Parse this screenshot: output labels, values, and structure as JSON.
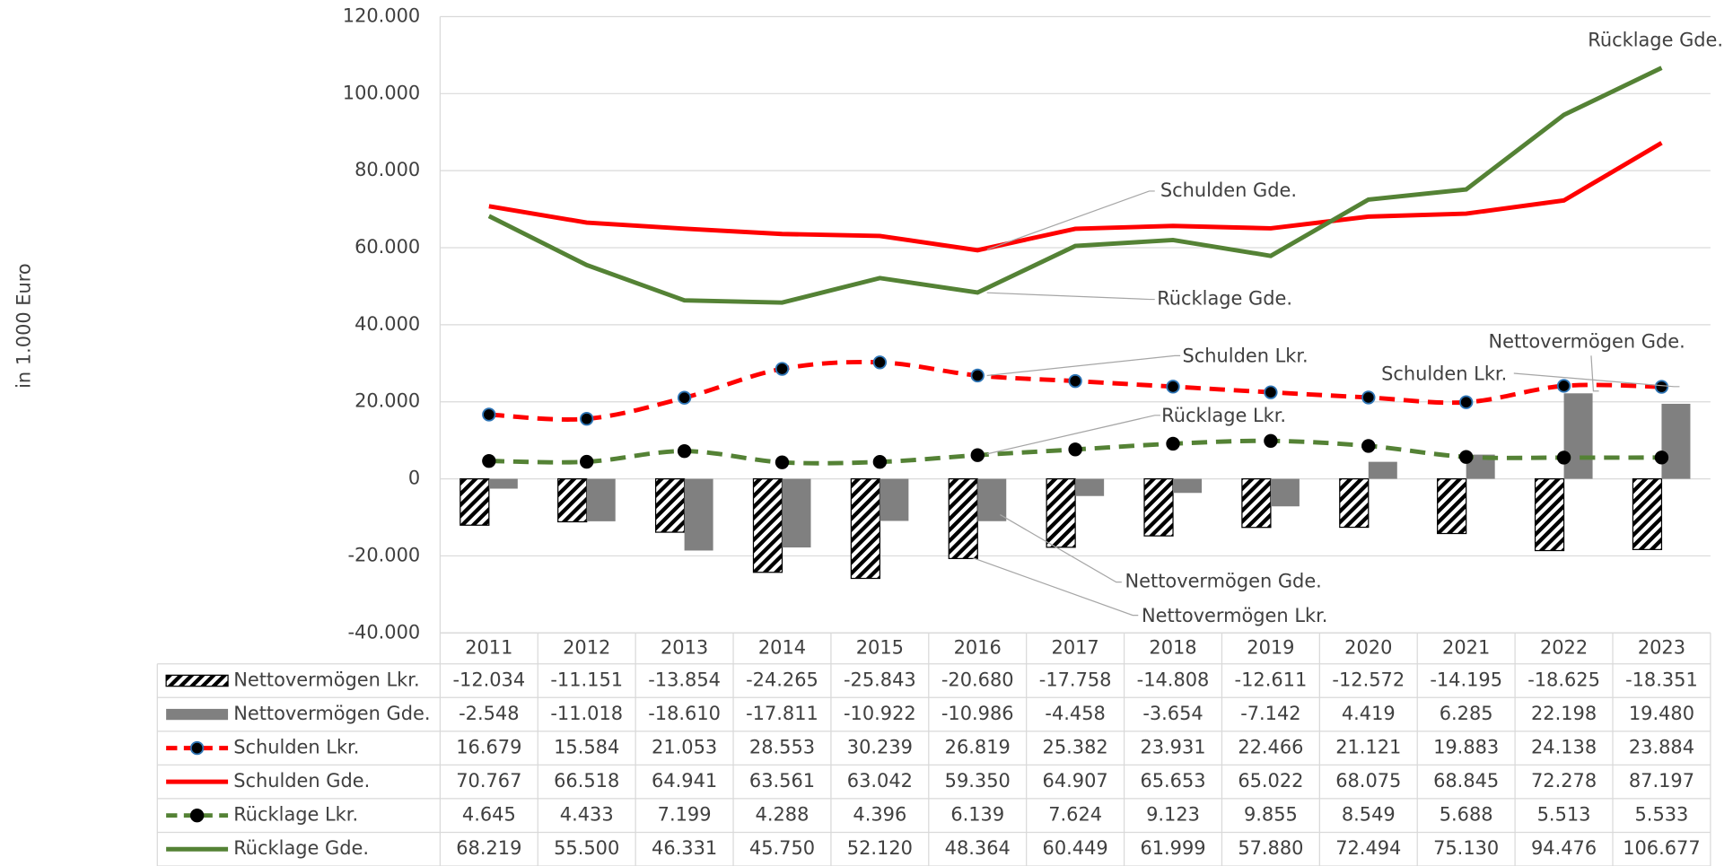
{
  "chart_data": {
    "type": "combo",
    "y_label": "in 1.000 Euro",
    "categories": [
      "2011",
      "2012",
      "2013",
      "2014",
      "2015",
      "2016",
      "2017",
      "2018",
      "2019",
      "2020",
      "2021",
      "2022",
      "2023"
    ],
    "ylim": [
      -40000,
      120000
    ],
    "yticks": [
      {
        "value": -40000,
        "label": "-40.000"
      },
      {
        "value": -20000,
        "label": "-20.000"
      },
      0,
      {
        "value": 20000,
        "label": "20.000"
      },
      {
        "value": 40000,
        "label": "40.000"
      },
      {
        "value": 60000,
        "label": "60.000"
      },
      {
        "value": 80000,
        "label": "80.000"
      },
      {
        "value": 100000,
        "label": "100.000"
      },
      {
        "value": 120000,
        "label": "120.000"
      }
    ],
    "grid": true,
    "data_table": true,
    "series": [
      {
        "name": "Nettovermögen Lkr.",
        "kind": "bar",
        "pattern": "hatch",
        "color": "#000000",
        "values": [
          -12034,
          -11151,
          -13854,
          -24265,
          -25843,
          -20680,
          -17758,
          -14808,
          -12611,
          -12572,
          -14195,
          -18625,
          -18351
        ],
        "value_labels": [
          "-12.034",
          "-11.151",
          "-13.854",
          "-24.265",
          "-25.843",
          "-20.680",
          "-17.758",
          "-14.808",
          "-12.611",
          "-12.572",
          "-14.195",
          "-18.625",
          "-18.351"
        ]
      },
      {
        "name": "Nettovermögen Gde.",
        "kind": "bar",
        "color": "#808080",
        "values": [
          -2548,
          -11018,
          -18610,
          -17811,
          -10922,
          -10986,
          -4458,
          -3654,
          -7142,
          4419,
          6285,
          22198,
          19480
        ],
        "value_labels": [
          "-2.548",
          "-11.018",
          "-18.610",
          "-17.811",
          "-10.922",
          "-10.986",
          "-4.458",
          "-3.654",
          "-7.142",
          "4.419",
          "6.285",
          "22.198",
          "19.480"
        ]
      },
      {
        "name": "Schulden Lkr.",
        "kind": "line",
        "dashed": true,
        "smooth": true,
        "markers": true,
        "color": "#ff0000",
        "marker_color": "#000000",
        "marker_edge": "#2e75b6",
        "values": [
          16679,
          15584,
          21053,
          28553,
          30239,
          26819,
          25382,
          23931,
          22466,
          21121,
          19883,
          24138,
          23884
        ],
        "value_labels": [
          "16.679",
          "15.584",
          "21.053",
          "28.553",
          "30.239",
          "26.819",
          "25.382",
          "23.931",
          "22.466",
          "21.121",
          "19.883",
          "24.138",
          "23.884"
        ]
      },
      {
        "name": "Schulden Gde.",
        "kind": "line",
        "color": "#ff0000",
        "values": [
          70767,
          66518,
          64941,
          63561,
          63042,
          59350,
          64907,
          65653,
          65022,
          68075,
          68845,
          72278,
          87197
        ],
        "value_labels": [
          "70.767",
          "66.518",
          "64.941",
          "63.561",
          "63.042",
          "59.350",
          "64.907",
          "65.653",
          "65.022",
          "68.075",
          "68.845",
          "72.278",
          "87.197"
        ]
      },
      {
        "name": "Rücklage Lkr.",
        "kind": "line",
        "dashed": true,
        "smooth": true,
        "markers": true,
        "color": "#548235",
        "marker_color": "#000000",
        "marker_edge": "#000000",
        "values": [
          4645,
          4433,
          7199,
          4288,
          4396,
          6139,
          7624,
          9123,
          9855,
          8549,
          5688,
          5513,
          5533
        ],
        "value_labels": [
          "4.645",
          "4.433",
          "7.199",
          "4.288",
          "4.396",
          "6.139",
          "7.624",
          "9.123",
          "9.855",
          "8.549",
          "5.688",
          "5.513",
          "5.533"
        ]
      },
      {
        "name": "Rücklage Gde.",
        "kind": "line",
        "color": "#548235",
        "values": [
          68219,
          55500,
          46331,
          45750,
          52120,
          48364,
          60449,
          61999,
          57880,
          72494,
          75130,
          94476,
          106677
        ],
        "value_labels": [
          "68.219",
          "55.500",
          "46.331",
          "45.750",
          "52.120",
          "48.364",
          "60.449",
          "61.999",
          "57.880",
          "72.494",
          "75.130",
          "94.476",
          "106.677"
        ]
      }
    ],
    "annotations": [
      "Schulden Gde.",
      "Rücklage Gde.",
      "Schulden Lkr.",
      "Rücklage Lkr.",
      "Nettovermögen Gde.",
      "Nettovermögen Lkr.",
      "Rücklage Gde.",
      "Nettovermögen Gde.",
      "Schulden Lkr."
    ]
  }
}
